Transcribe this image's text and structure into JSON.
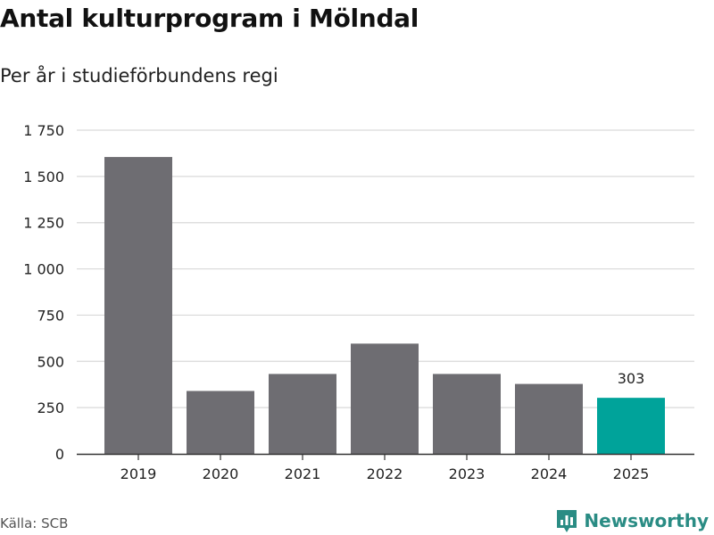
{
  "header": {
    "title": "Antal kulturprogram i Mölndal",
    "subtitle": "Per år i studieförbundens regi"
  },
  "footer": {
    "source": "Källa: SCB",
    "brand": "Newsworthy"
  },
  "colors": {
    "bar": "#6e6d72",
    "highlight": "#00a39a",
    "grid": "#d9d9d9",
    "axis": "#333333",
    "brand": "#2a8c84"
  },
  "chart_data": {
    "type": "bar",
    "title": "Antal kulturprogram i Mölndal",
    "subtitle": "Per år i studieförbundens regi",
    "categories": [
      "2019",
      "2020",
      "2021",
      "2022",
      "2023",
      "2024",
      "2025"
    ],
    "values": [
      1605,
      340,
      432,
      596,
      432,
      378,
      303
    ],
    "highlight_index": 6,
    "highlight_label": "303",
    "ylim": [
      0,
      1750
    ],
    "yticks": [
      0,
      250,
      500,
      750,
      1000,
      1250,
      1500,
      1750
    ],
    "ytick_labels": [
      "0",
      "250",
      "500",
      "750",
      "1 000",
      "1 250",
      "1 500",
      "1 750"
    ],
    "grid": true,
    "xlabel": "",
    "ylabel": ""
  }
}
